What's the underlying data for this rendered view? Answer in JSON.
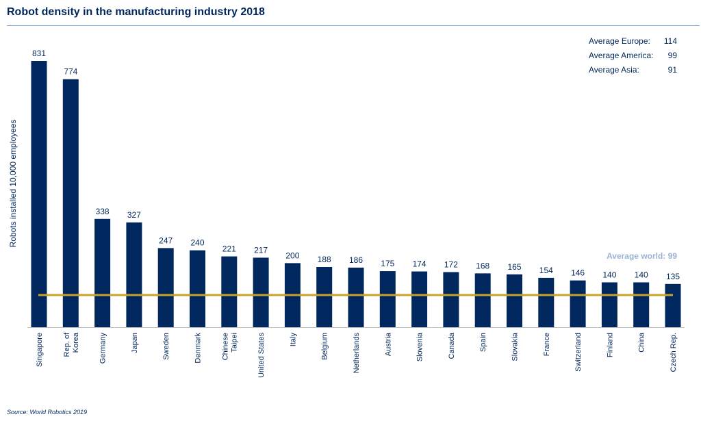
{
  "chart_data": {
    "type": "bar",
    "title": "Robot density in the manufacturing industry 2018",
    "ylabel": "Robots installed 10,000 employees",
    "xlabel": "",
    "ylim": [
      0,
      900
    ],
    "categories": [
      "Singapore",
      "Rep. of Korea",
      "Germany",
      "Japan",
      "Sweden",
      "Denmark",
      "Chinese Taipei",
      "United States",
      "Italy",
      "Belgium",
      "Netherlands",
      "Austria",
      "Slovenia",
      "Canada",
      "Spain",
      "Slovakia",
      "France",
      "Switzerland",
      "Finland",
      "China",
      "Czech Rep."
    ],
    "category_lines": [
      [
        "Singapore"
      ],
      [
        "Rep. of",
        "Korea"
      ],
      [
        "Germany"
      ],
      [
        "Japan"
      ],
      [
        "Sweden"
      ],
      [
        "Denmark"
      ],
      [
        "Chinese",
        "Taipei"
      ],
      [
        "United States"
      ],
      [
        "Italy"
      ],
      [
        "Belgium"
      ],
      [
        "Netherlands"
      ],
      [
        "Austria"
      ],
      [
        "Slovenia"
      ],
      [
        "Canada"
      ],
      [
        "Spain"
      ],
      [
        "Slovakia"
      ],
      [
        "France"
      ],
      [
        "Switzerland"
      ],
      [
        "Finland"
      ],
      [
        "China"
      ],
      [
        "Czech Rep."
      ]
    ],
    "values": [
      831,
      774,
      338,
      327,
      247,
      240,
      221,
      217,
      200,
      188,
      186,
      175,
      174,
      172,
      168,
      165,
      154,
      146,
      140,
      140,
      135
    ],
    "reference_line": {
      "label": "Average world: 99",
      "value": 99,
      "color": "#c9a227"
    },
    "averages": [
      {
        "label": "Average Europe:",
        "value": "114"
      },
      {
        "label": "Average America:",
        "value": "99"
      },
      {
        "label": "Average Asia:",
        "value": "91"
      }
    ],
    "bar_color": "#00285f",
    "grid": false,
    "legend": "none"
  },
  "source": "Source: World Robotics 2019"
}
